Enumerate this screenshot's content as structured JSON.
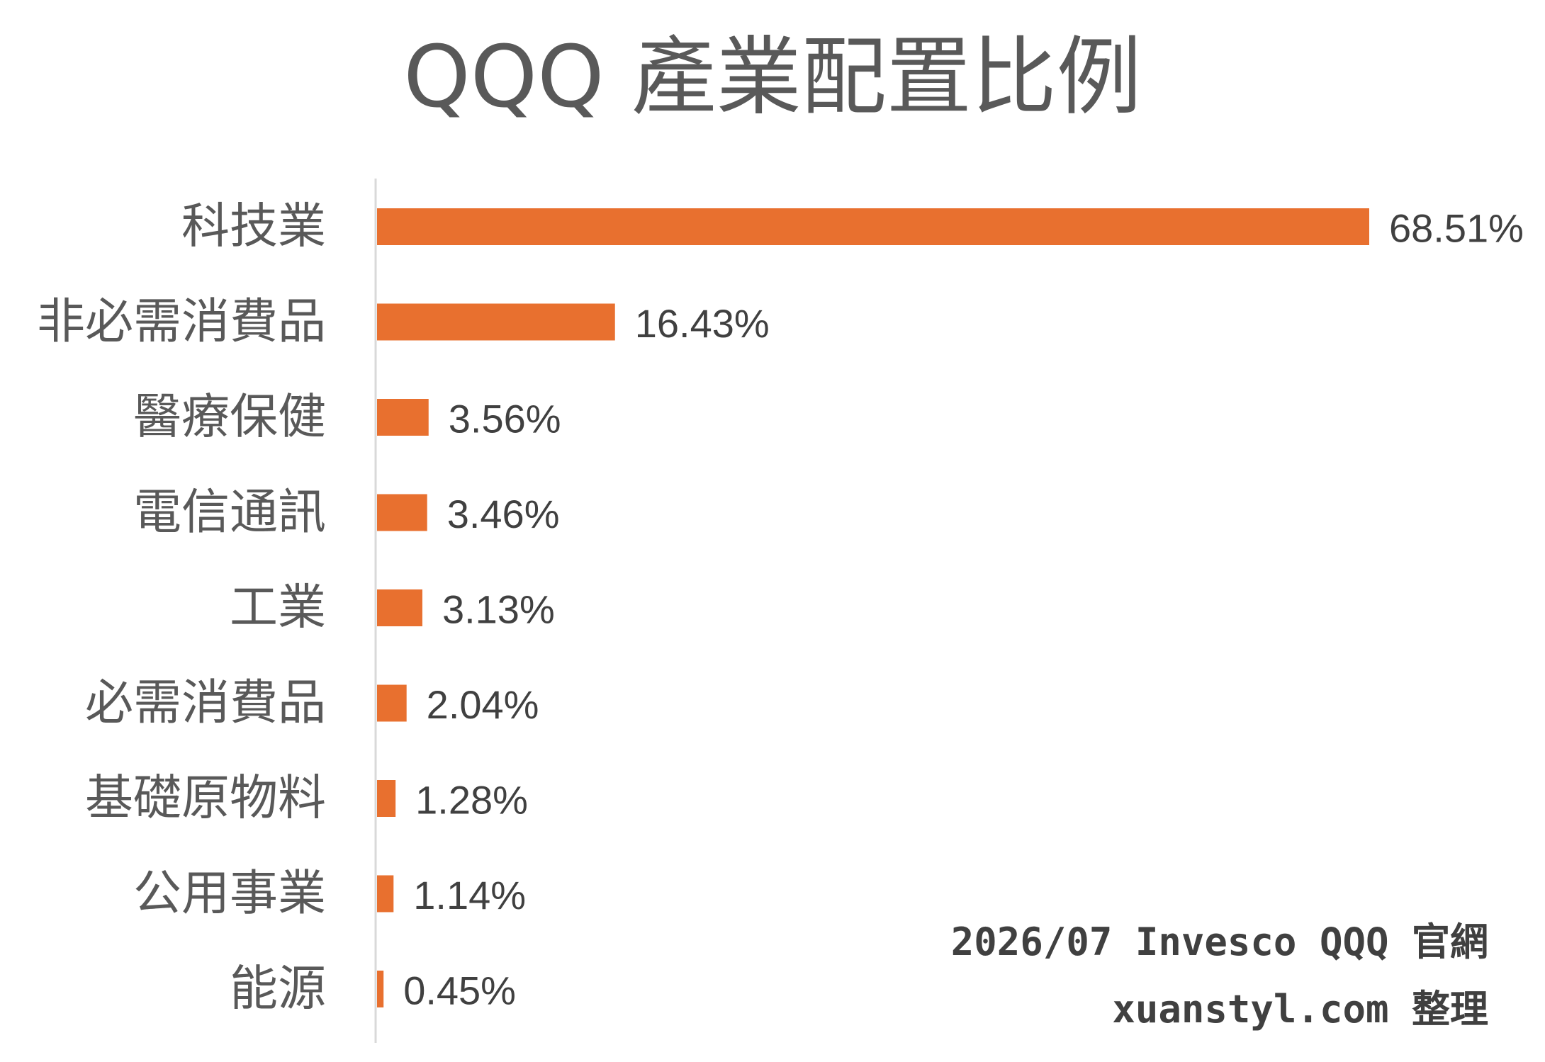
{
  "chart_data": {
    "type": "bar",
    "orientation": "horizontal",
    "title": "QQQ 產業配置比例",
    "categories": [
      "科技業",
      "非必需消費品",
      "醫療保健",
      "電信通訊",
      "工業",
      "必需消費品",
      "基礎原物料",
      "公用事業",
      "能源"
    ],
    "values": [
      68.51,
      16.43,
      3.56,
      3.46,
      3.13,
      2.04,
      1.28,
      1.14,
      0.45
    ],
    "value_labels": [
      "68.51%",
      "16.43%",
      "3.56%",
      "3.46%",
      "3.13%",
      "2.04%",
      "1.28%",
      "1.14%",
      "0.45%"
    ],
    "unit": "%",
    "xlim": [
      0,
      68.51
    ],
    "xlabel": "",
    "ylabel": "",
    "grid": false,
    "bar_color": "#E8702F"
  },
  "source_note": {
    "line1": "2026/07 Invesco QQQ 官網",
    "line2": "xuanstyl.com 整理"
  }
}
